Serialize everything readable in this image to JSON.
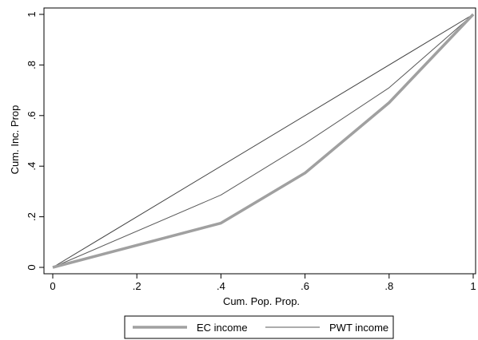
{
  "chart_data": {
    "type": "line",
    "xlabel": "Cum. Pop. Prop.",
    "ylabel": "Cum. Inc. Prop",
    "xlim": [
      0,
      1
    ],
    "ylim": [
      0,
      1
    ],
    "xticks": [
      0,
      0.2,
      0.4,
      0.6,
      0.8,
      1
    ],
    "xtick_labels": [
      "0",
      ".2",
      ".4",
      ".6",
      ".8",
      "1"
    ],
    "yticks": [
      0,
      0.2,
      0.4,
      0.6,
      0.8,
      1
    ],
    "ytick_labels": [
      "0",
      ".2",
      ".4",
      ".6",
      ".8",
      "1"
    ],
    "grid": false,
    "legend_position": "bottom",
    "series": [
      {
        "name": "EC income",
        "color": "#a0a0a0",
        "style": "thick",
        "x": [
          0,
          0.4,
          0.6,
          0.8,
          1
        ],
        "y": [
          0,
          0.175,
          0.373,
          0.651,
          1
        ]
      },
      {
        "name": "PWT income",
        "color": "#5a5a5a",
        "style": "thin",
        "x": [
          0,
          0.4,
          0.6,
          0.8,
          1
        ],
        "y": [
          0,
          0.286,
          0.49,
          0.71,
          1
        ]
      },
      {
        "color": "#444444",
        "style": "thin",
        "x": [
          0,
          1
        ],
        "y": [
          0,
          1
        ]
      }
    ]
  }
}
